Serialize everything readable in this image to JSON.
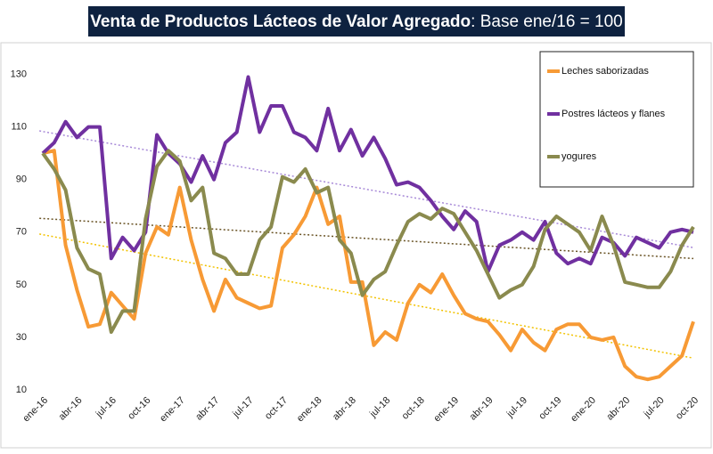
{
  "chart_data": {
    "type": "line",
    "title": "Venta de Productos Lácteos de Valor Agregado",
    "subtitle": ": Base ene/16 = 100",
    "categories": [
      "ene-16",
      null,
      null,
      "abr-16",
      null,
      null,
      "jul-16",
      null,
      null,
      "oct-16",
      null,
      null,
      "ene-17",
      null,
      null,
      "abr-17",
      null,
      null,
      "jul-17",
      null,
      null,
      "oct-17",
      null,
      null,
      "ene-18",
      null,
      null,
      "abr-18",
      null,
      null,
      "jul-18",
      null,
      null,
      "oct-18",
      null,
      null,
      "ene-19",
      null,
      null,
      "abr-19",
      null,
      null,
      "jul-19",
      null,
      null,
      "oct-19",
      null,
      null,
      "ene-20",
      null,
      null,
      "abr-20",
      null,
      null,
      "jul-20",
      null,
      null,
      "oct-20"
    ],
    "series": [
      {
        "name": "Leches saborizadas",
        "color": "#f79a35",
        "trend_color": "#f2c200",
        "values": [
          100,
          101,
          65,
          48,
          34,
          35,
          47,
          42,
          37,
          62,
          72,
          69,
          87,
          67,
          52,
          40,
          52,
          45,
          43,
          41,
          42,
          64,
          69,
          76,
          87,
          73,
          76,
          51,
          51,
          27,
          32,
          29,
          43,
          50,
          47,
          54,
          46,
          39,
          37,
          36,
          31,
          25,
          33,
          28,
          25,
          33,
          35,
          35,
          30,
          29,
          30,
          19,
          15,
          14,
          15,
          19,
          23,
          36
        ]
      },
      {
        "name": "Postres lácteos y flanes",
        "color": "#7030a0",
        "trend_color": "#a88ad8",
        "values": [
          100,
          104,
          112,
          106,
          110,
          110,
          60,
          68,
          63,
          70,
          107,
          100,
          96,
          89,
          99,
          90,
          104,
          108,
          129,
          108,
          118,
          118,
          108,
          106,
          101,
          117,
          101,
          109,
          99,
          106,
          98,
          88,
          89,
          87,
          82,
          76,
          71,
          78,
          74,
          55,
          65,
          67,
          70,
          67,
          74,
          62,
          58,
          60,
          58,
          68,
          66,
          61,
          68,
          66,
          64,
          70,
          71,
          70
        ]
      },
      {
        "name": "yogures",
        "color": "#8a8a4e",
        "trend_color": "#6b5527",
        "values": [
          100,
          94,
          86,
          64,
          56,
          54,
          32,
          40,
          40,
          75,
          95,
          101,
          97,
          82,
          87,
          62,
          60,
          54,
          54,
          67,
          72,
          91,
          89,
          94,
          85,
          87,
          67,
          62,
          46,
          52,
          55,
          65,
          74,
          77,
          75,
          79,
          77,
          70,
          63,
          54,
          45,
          48,
          50,
          57,
          71,
          76,
          73,
          70,
          63,
          76,
          65,
          51,
          50,
          49,
          49,
          55,
          65,
          72
        ]
      }
    ],
    "ylim": [
      10,
      140
    ],
    "yticks": [
      10,
      30,
      50,
      70,
      90,
      110,
      130
    ],
    "trendlines": true,
    "legend": "upper right"
  }
}
